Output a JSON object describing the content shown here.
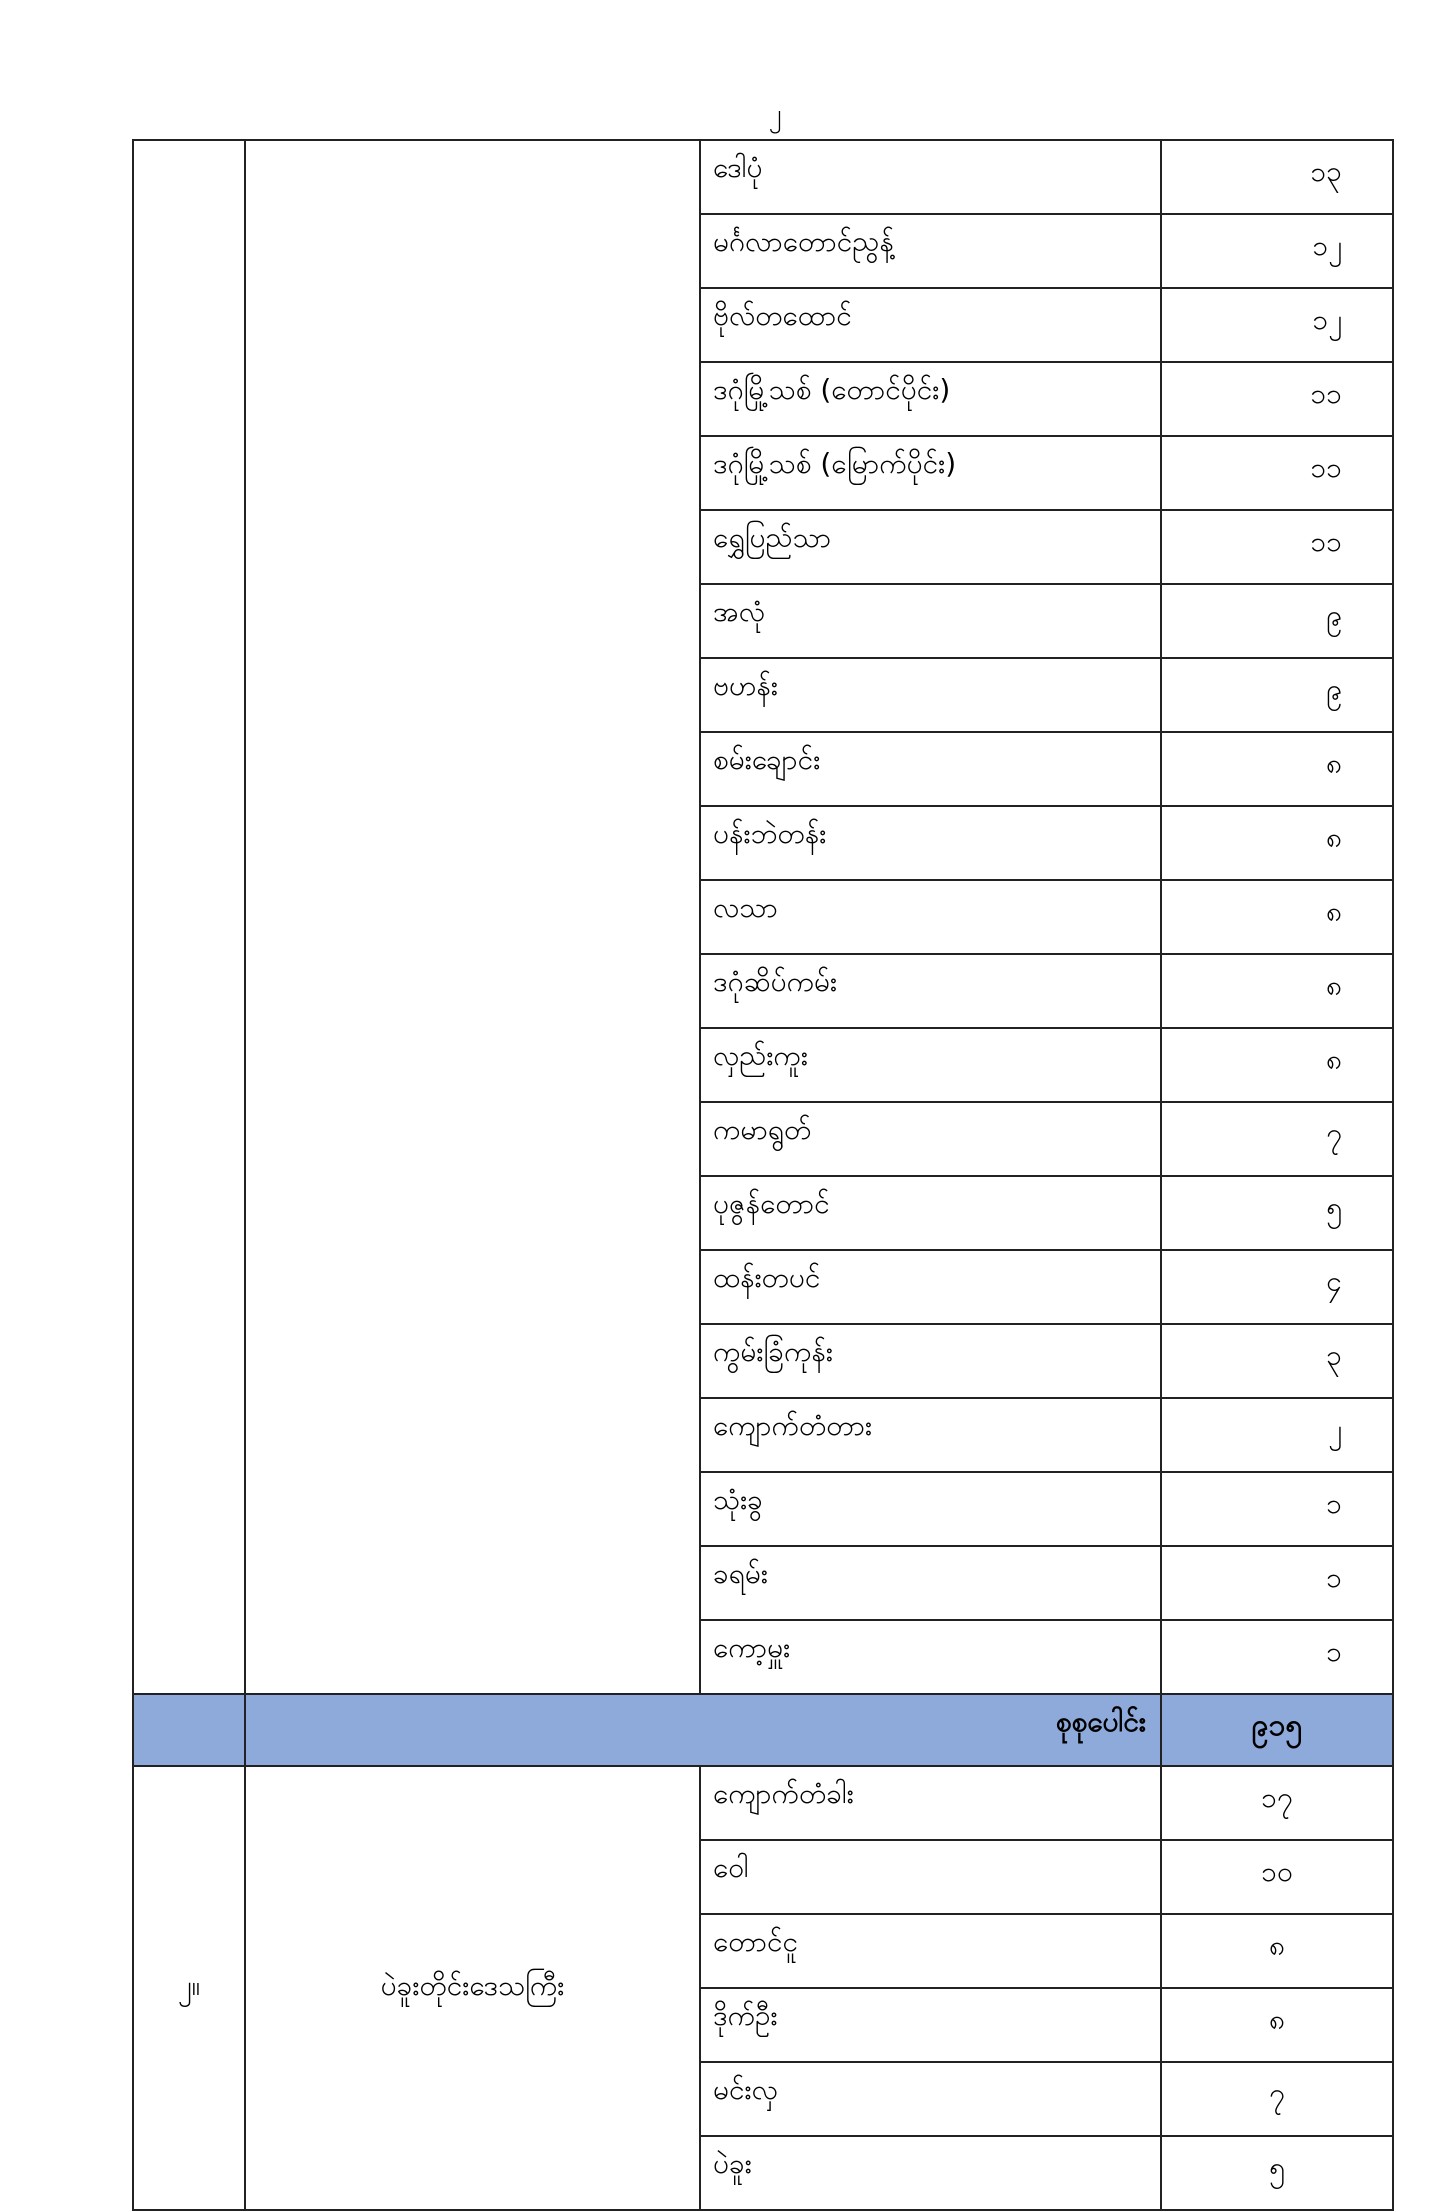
{
  "page_number": "၂",
  "block1": {
    "number": "",
    "region": "",
    "rows": [
      {
        "name": "ဒေါပုံ",
        "count": "၁၃"
      },
      {
        "name": "မင်္ဂလာတောင်ညွန့်",
        "count": "၁၂"
      },
      {
        "name": "ဗိုလ်တထောင်",
        "count": "၁၂"
      },
      {
        "name": "ဒဂုံမြို့သစ် (တောင်ပိုင်း)",
        "count": "၁၁"
      },
      {
        "name": "ဒဂုံမြို့သစ် (မြောက်ပိုင်း)",
        "count": "၁၁"
      },
      {
        "name": "ရွှေပြည်သာ",
        "count": "၁၁"
      },
      {
        "name": "အလုံ",
        "count": "၉"
      },
      {
        "name": "ဗဟန်း",
        "count": "၉"
      },
      {
        "name": "စမ်းချောင်း",
        "count": "၈"
      },
      {
        "name": "ပန်းဘဲတန်း",
        "count": "၈"
      },
      {
        "name": "လသာ",
        "count": "၈"
      },
      {
        "name": "ဒဂုံဆိပ်ကမ်း",
        "count": "၈"
      },
      {
        "name": "လှည်းကူး",
        "count": "၈"
      },
      {
        "name": "ကမာရွတ်",
        "count": "၇"
      },
      {
        "name": "ပုဇွန်တောင်",
        "count": "၅"
      },
      {
        "name": "ထန်းတပင်",
        "count": "၄"
      },
      {
        "name": "ကွမ်းခြံကုန်း",
        "count": "၃"
      },
      {
        "name": "ကျောက်တံတား",
        "count": "၂"
      },
      {
        "name": "သုံးခွ",
        "count": "၁"
      },
      {
        "name": "ခရမ်း",
        "count": "၁"
      },
      {
        "name": "ကော့မှူး",
        "count": "၁"
      }
    ]
  },
  "summary": {
    "label": "စုစုပေါင်း",
    "total": "၉၁၅",
    "color": "#8eaadb"
  },
  "block2": {
    "number": "၂။",
    "region": "ပဲခူးတိုင်းဒေသကြီး",
    "rows": [
      {
        "name": "ကျောက်တံခါး",
        "count": "၁၇"
      },
      {
        "name": "ဝေါ",
        "count": "၁၀"
      },
      {
        "name": "တောင်ငူ",
        "count": "၈"
      },
      {
        "name": "ဒိုက်ဦး",
        "count": "၈"
      },
      {
        "name": "မင်းလှ",
        "count": "၇"
      },
      {
        "name": "ပဲခူး",
        "count": "၅"
      }
    ]
  }
}
